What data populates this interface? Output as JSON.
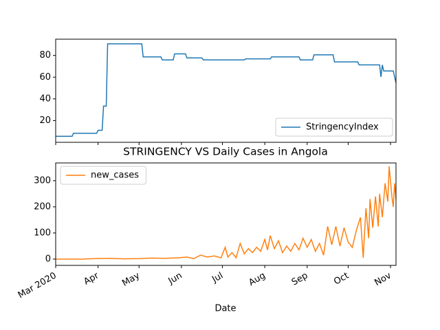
{
  "chart_data": [
    {
      "type": "line",
      "legend": "lower right",
      "x": [
        "2020-03-01",
        "2020-03-13",
        "2020-03-14",
        "2020-03-31",
        "2020-04-01",
        "2020-04-04",
        "2020-04-05",
        "2020-04-07",
        "2020-04-08",
        "2020-05-03",
        "2020-05-04",
        "2020-05-17",
        "2020-05-18",
        "2020-05-26",
        "2020-05-27",
        "2020-06-04",
        "2020-06-05",
        "2020-06-16",
        "2020-06-17",
        "2020-07-17",
        "2020-07-18",
        "2020-08-05",
        "2020-08-06",
        "2020-08-26",
        "2020-08-27",
        "2020-09-05",
        "2020-09-06",
        "2020-09-20",
        "2020-09-21",
        "2020-10-08",
        "2020-10-09",
        "2020-10-24",
        "2020-10-25",
        "2020-10-26",
        "2020-10-27",
        "2020-11-03",
        "2020-11-05"
      ],
      "series": [
        {
          "name": "StringencyIndex",
          "color": "#1f77b4",
          "values": [
            5.56,
            5.56,
            8.33,
            8.33,
            11.11,
            11.11,
            33.33,
            33.33,
            90.74,
            90.74,
            78.7,
            78.7,
            75.93,
            75.93,
            81.48,
            81.48,
            77.78,
            77.78,
            75.93,
            75.93,
            76.85,
            76.85,
            78.7,
            78.7,
            75.93,
            75.93,
            80.56,
            80.56,
            74.07,
            74.07,
            71.3,
            71.3,
            60.19,
            71.3,
            65.74,
            65.74,
            54.63
          ]
        }
      ],
      "xlim": [
        "2020-03-01",
        "2020-11-05"
      ],
      "xticks": [
        "2020-03-01",
        "2020-04-01",
        "2020-05-01",
        "2020-06-01",
        "2020-07-01",
        "2020-08-01",
        "2020-09-01",
        "2020-10-01",
        "2020-11-01"
      ],
      "ylim": [
        0,
        95
      ],
      "yticks": [
        20,
        40,
        60,
        80
      ]
    },
    {
      "type": "line",
      "title": "STRINGENCY VS Daily Cases in Angola",
      "xlabel": "Date",
      "legend": "upper left",
      "x": [
        "2020-03-01",
        "2020-03-20",
        "2020-03-30",
        "2020-04-10",
        "2020-04-20",
        "2020-05-01",
        "2020-05-10",
        "2020-05-20",
        "2020-05-30",
        "2020-06-05",
        "2020-06-10",
        "2020-06-15",
        "2020-06-20",
        "2020-06-25",
        "2020-06-30",
        "2020-07-03",
        "2020-07-05",
        "2020-07-08",
        "2020-07-11",
        "2020-07-14",
        "2020-07-17",
        "2020-07-20",
        "2020-07-23",
        "2020-07-26",
        "2020-07-29",
        "2020-08-01",
        "2020-08-03",
        "2020-08-05",
        "2020-08-08",
        "2020-08-11",
        "2020-08-14",
        "2020-08-17",
        "2020-08-20",
        "2020-08-23",
        "2020-08-26",
        "2020-08-29",
        "2020-09-01",
        "2020-09-04",
        "2020-09-07",
        "2020-09-10",
        "2020-09-13",
        "2020-09-16",
        "2020-09-19",
        "2020-09-22",
        "2020-09-25",
        "2020-09-28",
        "2020-10-01",
        "2020-10-04",
        "2020-10-07",
        "2020-10-10",
        "2020-10-12",
        "2020-10-14",
        "2020-10-16",
        "2020-10-17",
        "2020-10-19",
        "2020-10-21",
        "2020-10-23",
        "2020-10-24",
        "2020-10-26",
        "2020-10-28",
        "2020-10-30",
        "2020-10-31",
        "2020-11-02",
        "2020-11-03",
        "2020-11-04",
        "2020-11-05"
      ],
      "series": [
        {
          "name": "new_cases",
          "color": "#ff7f0e",
          "values": [
            0,
            0,
            2,
            3,
            1,
            2,
            4,
            3,
            5,
            8,
            2,
            15,
            8,
            12,
            5,
            45,
            8,
            25,
            5,
            60,
            20,
            40,
            25,
            45,
            30,
            75,
            35,
            90,
            40,
            70,
            25,
            50,
            30,
            60,
            35,
            80,
            45,
            75,
            30,
            60,
            15,
            125,
            55,
            125,
            50,
            120,
            65,
            45,
            110,
            160,
            5,
            195,
            80,
            230,
            120,
            240,
            125,
            250,
            160,
            290,
            220,
            355,
            240,
            200,
            290,
            230
          ]
        }
      ],
      "xlim": [
        "2020-03-01",
        "2020-11-05"
      ],
      "xticks": [
        {
          "value": "2020-03-01",
          "label": "Mar 2020"
        },
        {
          "value": "2020-04-01",
          "label": "Apr"
        },
        {
          "value": "2020-05-01",
          "label": "May"
        },
        {
          "value": "2020-06-01",
          "label": "Jun"
        },
        {
          "value": "2020-07-01",
          "label": "Jul"
        },
        {
          "value": "2020-08-01",
          "label": "Aug"
        },
        {
          "value": "2020-09-01",
          "label": "Sep"
        },
        {
          "value": "2020-10-01",
          "label": "Oct"
        },
        {
          "value": "2020-11-01",
          "label": "Nov"
        }
      ],
      "ylim": [
        -24,
        368
      ],
      "yticks": [
        0,
        100,
        200,
        300
      ]
    }
  ]
}
